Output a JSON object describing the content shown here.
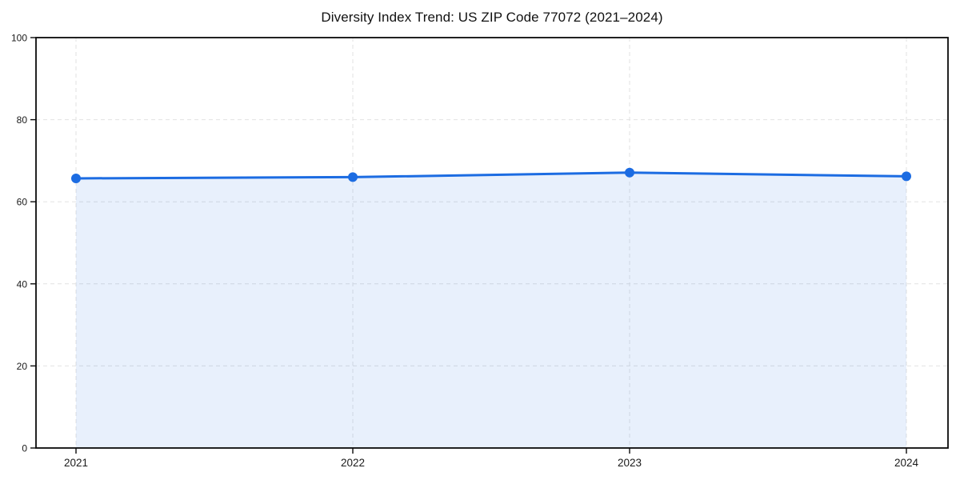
{
  "page": {
    "background_color": "#ffffff"
  },
  "chart_data": {
    "type": "line",
    "title": "Diversity Index Trend: US ZIP Code 77072 (2021–2024)",
    "x": [
      "2021",
      "2022",
      "2023",
      "2024"
    ],
    "series": [
      {
        "name": "Diversity Index",
        "values": [
          65.7,
          66.0,
          67.1,
          66.2
        ]
      }
    ],
    "xlabel": "",
    "ylabel": "",
    "ylim": [
      0,
      100
    ],
    "yticks": [
      0,
      20,
      40,
      60,
      80,
      100
    ],
    "grid": true,
    "grid_style": "dashed",
    "legend_position": "none",
    "marker": "circle",
    "area_fill": true,
    "colors": {
      "line": "#1c6ce2",
      "marker": "#1c6ce2",
      "area_fill": "#1c6ce2",
      "area_fill_opacity": 0.1,
      "grid": "#e2e2e2",
      "axis_frame": "#0a0a0a",
      "tick_text": "#1a1a1a",
      "title_text": "#111111"
    }
  }
}
